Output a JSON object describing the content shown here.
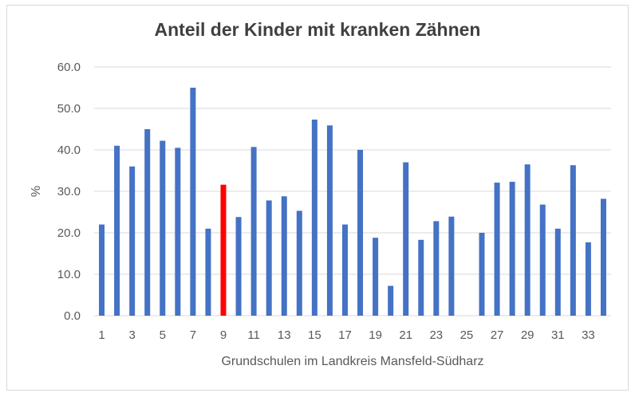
{
  "chart_data": {
    "type": "bar",
    "title": "Anteil der Kinder mit kranken Zähnen",
    "xlabel": "Grundschulen im Landkreis Mansfeld-Südharz",
    "ylabel": "%",
    "ylim": [
      0,
      60
    ],
    "yticks": [
      "0.0",
      "10.0",
      "20.0",
      "30.0",
      "40.0",
      "50.0",
      "60.0"
    ],
    "grid": true,
    "legend": "none",
    "categories": [
      1,
      2,
      3,
      4,
      5,
      6,
      7,
      8,
      9,
      10,
      11,
      12,
      13,
      14,
      15,
      16,
      17,
      18,
      19,
      20,
      21,
      22,
      23,
      24,
      25,
      26,
      27,
      28,
      29,
      30,
      31,
      32,
      33,
      34
    ],
    "xtick_labels": [
      "1",
      "3",
      "5",
      "7",
      "9",
      "11",
      "13",
      "15",
      "17",
      "19",
      "21",
      "23",
      "25",
      "27",
      "29",
      "31",
      "33"
    ],
    "values": [
      22.0,
      41.0,
      36.0,
      45.0,
      42.2,
      40.5,
      55.0,
      21.0,
      31.6,
      23.8,
      40.7,
      27.8,
      28.8,
      25.3,
      47.3,
      45.9,
      22.0,
      40.0,
      18.8,
      7.2,
      37.0,
      18.3,
      22.8,
      23.9,
      0,
      20.0,
      32.1,
      32.3,
      36.5,
      26.8,
      21.0,
      36.3,
      17.7,
      28.2
    ],
    "colors": {
      "bar": "#4472c4",
      "highlight": "#ff0000",
      "grid": "#d9d9d9",
      "text": "#595959"
    },
    "highlight_category": 9
  }
}
